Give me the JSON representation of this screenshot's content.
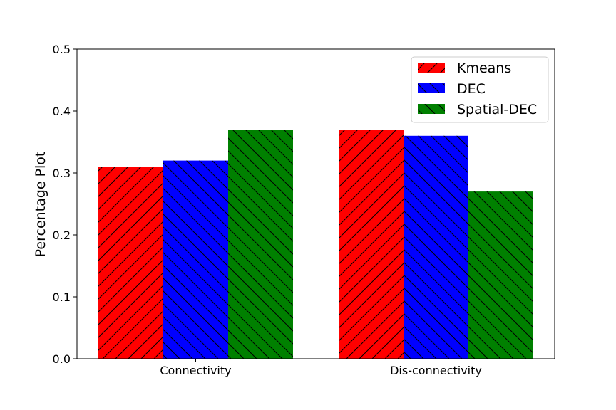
{
  "chart_data": {
    "type": "bar",
    "categories": [
      "Connectivity",
      "Dis-connectivity"
    ],
    "series": [
      {
        "name": "Kmeans",
        "values": [
          0.31,
          0.37
        ],
        "color": "#ff0000",
        "hatch": "forward-diagonal"
      },
      {
        "name": "DEC",
        "values": [
          0.32,
          0.36
        ],
        "color": "#0000ff",
        "hatch": "back-diagonal"
      },
      {
        "name": "Spatial-DEC",
        "values": [
          0.37,
          0.27
        ],
        "color": "#008000",
        "hatch": "back-diagonal"
      }
    ],
    "title": "",
    "xlabel": "",
    "ylabel": "Percentage Plot",
    "ylim": [
      0,
      0.5
    ],
    "yticks": [
      "0.0",
      "0.1",
      "0.2",
      "0.3",
      "0.4",
      "0.5"
    ],
    "grid": false,
    "legend_position": "top-right"
  }
}
